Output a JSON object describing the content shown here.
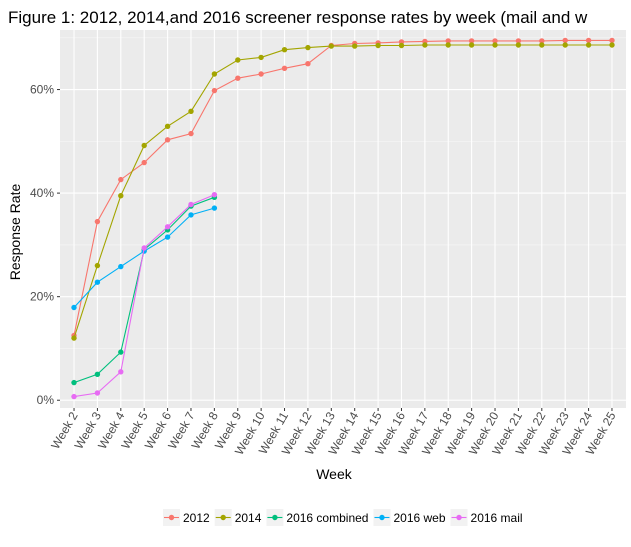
{
  "chart_data": {
    "type": "line",
    "title": "Figure 1: 2012, 2014,and 2016 screener response rates by week (mail and w",
    "xlabel": "Week",
    "ylabel": "Response Rate",
    "categories": [
      "Week 2",
      "Week 3",
      "Week 4",
      "Week 5",
      "Week 6",
      "Week 7",
      "Week 8",
      "Week 9",
      "Week 10",
      "Week 11",
      "Week 12",
      "Week 13",
      "Week 14",
      "Week 15",
      "Week 16",
      "Week 17",
      "Week 18",
      "Week 19",
      "Week 20",
      "Week 21",
      "Week 22",
      "Week 23",
      "Week 24",
      "Week 25"
    ],
    "y_ticks": [
      {
        "value": 0,
        "label": "0%"
      },
      {
        "value": 20,
        "label": "20%"
      },
      {
        "value": 40,
        "label": "40%"
      },
      {
        "value": 60,
        "label": "60%"
      }
    ],
    "ylim": [
      -1.5,
      71.5
    ],
    "grid": true,
    "legend_position": "bottom",
    "series": [
      {
        "name": "2012",
        "color": "#F8766D",
        "values": [
          12.5,
          34.5,
          42.6,
          45.9,
          50.3,
          51.5,
          59.8,
          62.2,
          63.0,
          64.1,
          65.0,
          68.5,
          68.9,
          69.0,
          69.2,
          69.3,
          69.4,
          69.4,
          69.4,
          69.4,
          69.4,
          69.5,
          69.5,
          69.5
        ]
      },
      {
        "name": "2014",
        "color": "#A3A500",
        "values": [
          12.0,
          26.0,
          39.5,
          49.2,
          52.9,
          55.8,
          63.0,
          65.7,
          66.2,
          67.7,
          68.1,
          68.4,
          68.4,
          68.5,
          68.5,
          68.6,
          68.6,
          68.6,
          68.6,
          68.6,
          68.6,
          68.6,
          68.6,
          68.6
        ]
      },
      {
        "name": "2016 combined",
        "color": "#00BF7D",
        "values": [
          3.4,
          5.0,
          9.3,
          29.1,
          32.9,
          37.5,
          39.2,
          null,
          null,
          null,
          null,
          null,
          null,
          null,
          null,
          null,
          null,
          null,
          null,
          null,
          null,
          null,
          null,
          null
        ]
      },
      {
        "name": "2016 web",
        "color": "#00B0F6",
        "values": [
          17.9,
          22.8,
          25.8,
          28.8,
          31.5,
          35.8,
          37.1,
          null,
          null,
          null,
          null,
          null,
          null,
          null,
          null,
          null,
          null,
          null,
          null,
          null,
          null,
          null,
          null,
          null
        ]
      },
      {
        "name": "2016 mail",
        "color": "#E76BF3",
        "values": [
          0.7,
          1.4,
          5.5,
          29.4,
          33.5,
          37.8,
          39.7,
          null,
          null,
          null,
          null,
          null,
          null,
          null,
          null,
          null,
          null,
          null,
          null,
          null,
          null,
          null,
          null,
          null
        ]
      }
    ]
  }
}
